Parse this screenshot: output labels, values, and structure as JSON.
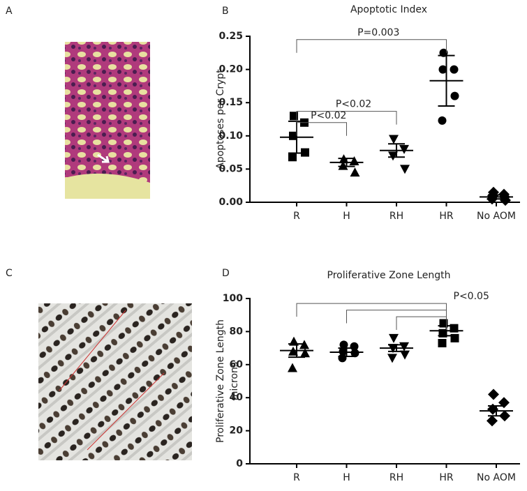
{
  "panel_labels": [
    "A",
    "B",
    "C",
    "D"
  ],
  "chart_data": [
    {
      "type": "dot",
      "title": "Apoptotic Index",
      "y_label": [
        "Apoptoses per Crypt"
      ],
      "categories": [
        "R",
        "H",
        "RH",
        "HR",
        "No AOM"
      ],
      "ylim": [
        0,
        0.25
      ],
      "yticks": [
        {
          "value": 0,
          "label": "0.00"
        },
        0.05,
        {
          "value": 0.1,
          "label": "0.10"
        },
        0.15,
        {
          "value": 0.2,
          "label": "0.20"
        },
        0.25
      ],
      "groups": [
        {
          "marker": "square",
          "points": [
            0.13,
            0.12,
            0.1,
            0.075,
            0.068
          ],
          "mean": 0.098,
          "error": 0.024
        },
        {
          "marker": "triangle",
          "points": [
            0.065,
            0.062,
            0.055,
            0.045
          ],
          "mean": 0.06,
          "error": 0.006
        },
        {
          "marker": "triangle-down",
          "points": [
            0.095,
            0.08,
            0.07,
            0.05
          ],
          "mean": 0.078,
          "error": 0.01
        },
        {
          "marker": "circle",
          "points": [
            0.225,
            0.2,
            0.2,
            0.16,
            0.123
          ],
          "mean": 0.183,
          "error": 0.038
        },
        {
          "marker": "diamond",
          "points": [
            0.015,
            0.012,
            0.01,
            0.008,
            0.005,
            0.003
          ],
          "mean": 0.008,
          "error": 0.003
        }
      ],
      "brackets": [
        {
          "from": 0,
          "to": 3,
          "y": 0.245,
          "label": "P=0.003"
        },
        {
          "from": 0,
          "to": 2,
          "y": 0.137,
          "label": "P<0.02"
        },
        {
          "from": 0,
          "to": 1,
          "y": 0.12,
          "label": "P<0.02"
        }
      ]
    },
    {
      "type": "dot",
      "title": "Proliferative Zone Length",
      "y_label": [
        "Proliferative Zone Length",
        "microns"
      ],
      "categories": [
        "R",
        "H",
        "RH",
        "HR",
        "No AOM"
      ],
      "ylim": [
        0,
        100
      ],
      "yticks": [
        0,
        20,
        40,
        60,
        80,
        100
      ],
      "groups": [
        {
          "marker": "triangle",
          "points": [
            74,
            72,
            68,
            67,
            58
          ],
          "mean": 68.5,
          "error": 4
        },
        {
          "marker": "circle",
          "points": [
            72,
            71,
            68,
            67,
            64
          ],
          "mean": 67.5,
          "error": 2.5
        },
        {
          "marker": "triangle-down",
          "points": [
            76,
            71,
            70,
            66,
            64
          ],
          "mean": 70,
          "error": 2
        },
        {
          "marker": "square",
          "points": [
            85,
            82,
            79,
            76,
            73
          ],
          "mean": 80.5,
          "error": 3
        },
        {
          "marker": "diamond",
          "points": [
            42,
            37,
            33,
            29,
            26
          ],
          "mean": 32,
          "error": 3
        }
      ],
      "brackets": [
        {
          "from": 0,
          "to": 3,
          "y": 97,
          "label": "P<0.05"
        },
        {
          "from": 1,
          "to": 3,
          "y": 93
        },
        {
          "from": 2,
          "to": 3,
          "y": 89
        }
      ]
    }
  ]
}
